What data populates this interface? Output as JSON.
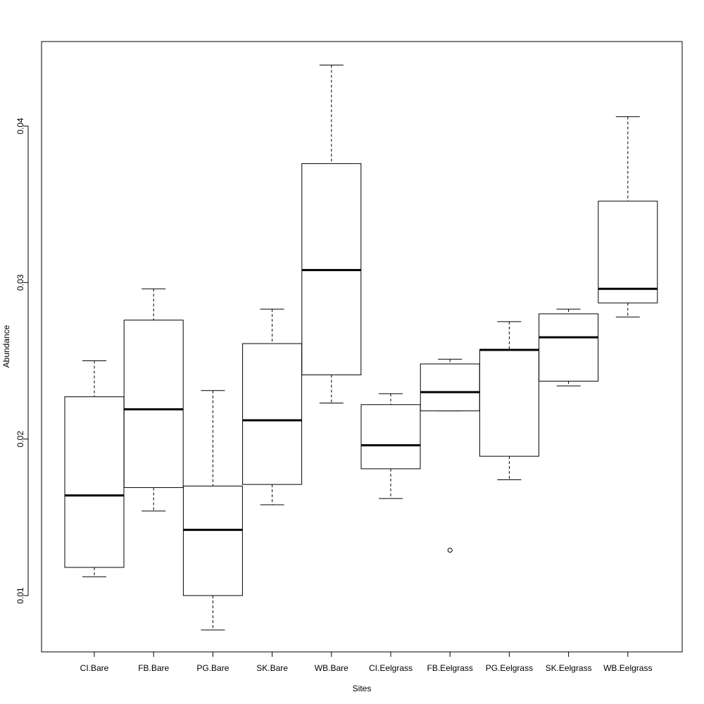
{
  "chart_data": {
    "type": "boxplot",
    "xlabel": "Sites",
    "ylabel": "Abundance",
    "ylim": [
      0.0064,
      0.0454
    ],
    "yticks": [
      0.01,
      0.02,
      0.03,
      0.04
    ],
    "ytick_labels": [
      "0.01",
      "0.02",
      "0.03",
      "0.04"
    ],
    "categories": [
      "CI.Bare",
      "FB.Bare",
      "PG.Bare",
      "SK.Bare",
      "WB.Bare",
      "CI.Eelgrass",
      "FB.Eelgrass",
      "PG.Eelgrass",
      "SK.Eelgrass",
      "WB.Eelgrass"
    ],
    "boxes": [
      {
        "min": 0.0112,
        "q1": 0.0118,
        "median": 0.0164,
        "q3": 0.0227,
        "max": 0.025,
        "outliers": []
      },
      {
        "min": 0.0154,
        "q1": 0.0169,
        "median": 0.0219,
        "q3": 0.0276,
        "max": 0.0296,
        "outliers": []
      },
      {
        "min": 0.0078,
        "q1": 0.01,
        "median": 0.0142,
        "q3": 0.017,
        "max": 0.0231,
        "outliers": []
      },
      {
        "min": 0.0158,
        "q1": 0.0171,
        "median": 0.0212,
        "q3": 0.0261,
        "max": 0.0283,
        "outliers": []
      },
      {
        "min": 0.0223,
        "q1": 0.0241,
        "median": 0.0308,
        "q3": 0.0376,
        "max": 0.0439,
        "outliers": []
      },
      {
        "min": 0.0162,
        "q1": 0.0181,
        "median": 0.0196,
        "q3": 0.0222,
        "max": 0.0229,
        "outliers": []
      },
      {
        "min": 0.0218,
        "q1": 0.0218,
        "median": 0.023,
        "q3": 0.0248,
        "max": 0.0251,
        "outliers": [
          0.0129
        ]
      },
      {
        "min": 0.0174,
        "q1": 0.0189,
        "median": 0.0257,
        "q3": 0.0257,
        "max": 0.0275,
        "outliers": []
      },
      {
        "min": 0.0234,
        "q1": 0.0237,
        "median": 0.0265,
        "q3": 0.028,
        "max": 0.0283,
        "outliers": []
      },
      {
        "min": 0.0278,
        "q1": 0.0287,
        "median": 0.0296,
        "q3": 0.0352,
        "max": 0.0406,
        "outliers": []
      }
    ]
  }
}
